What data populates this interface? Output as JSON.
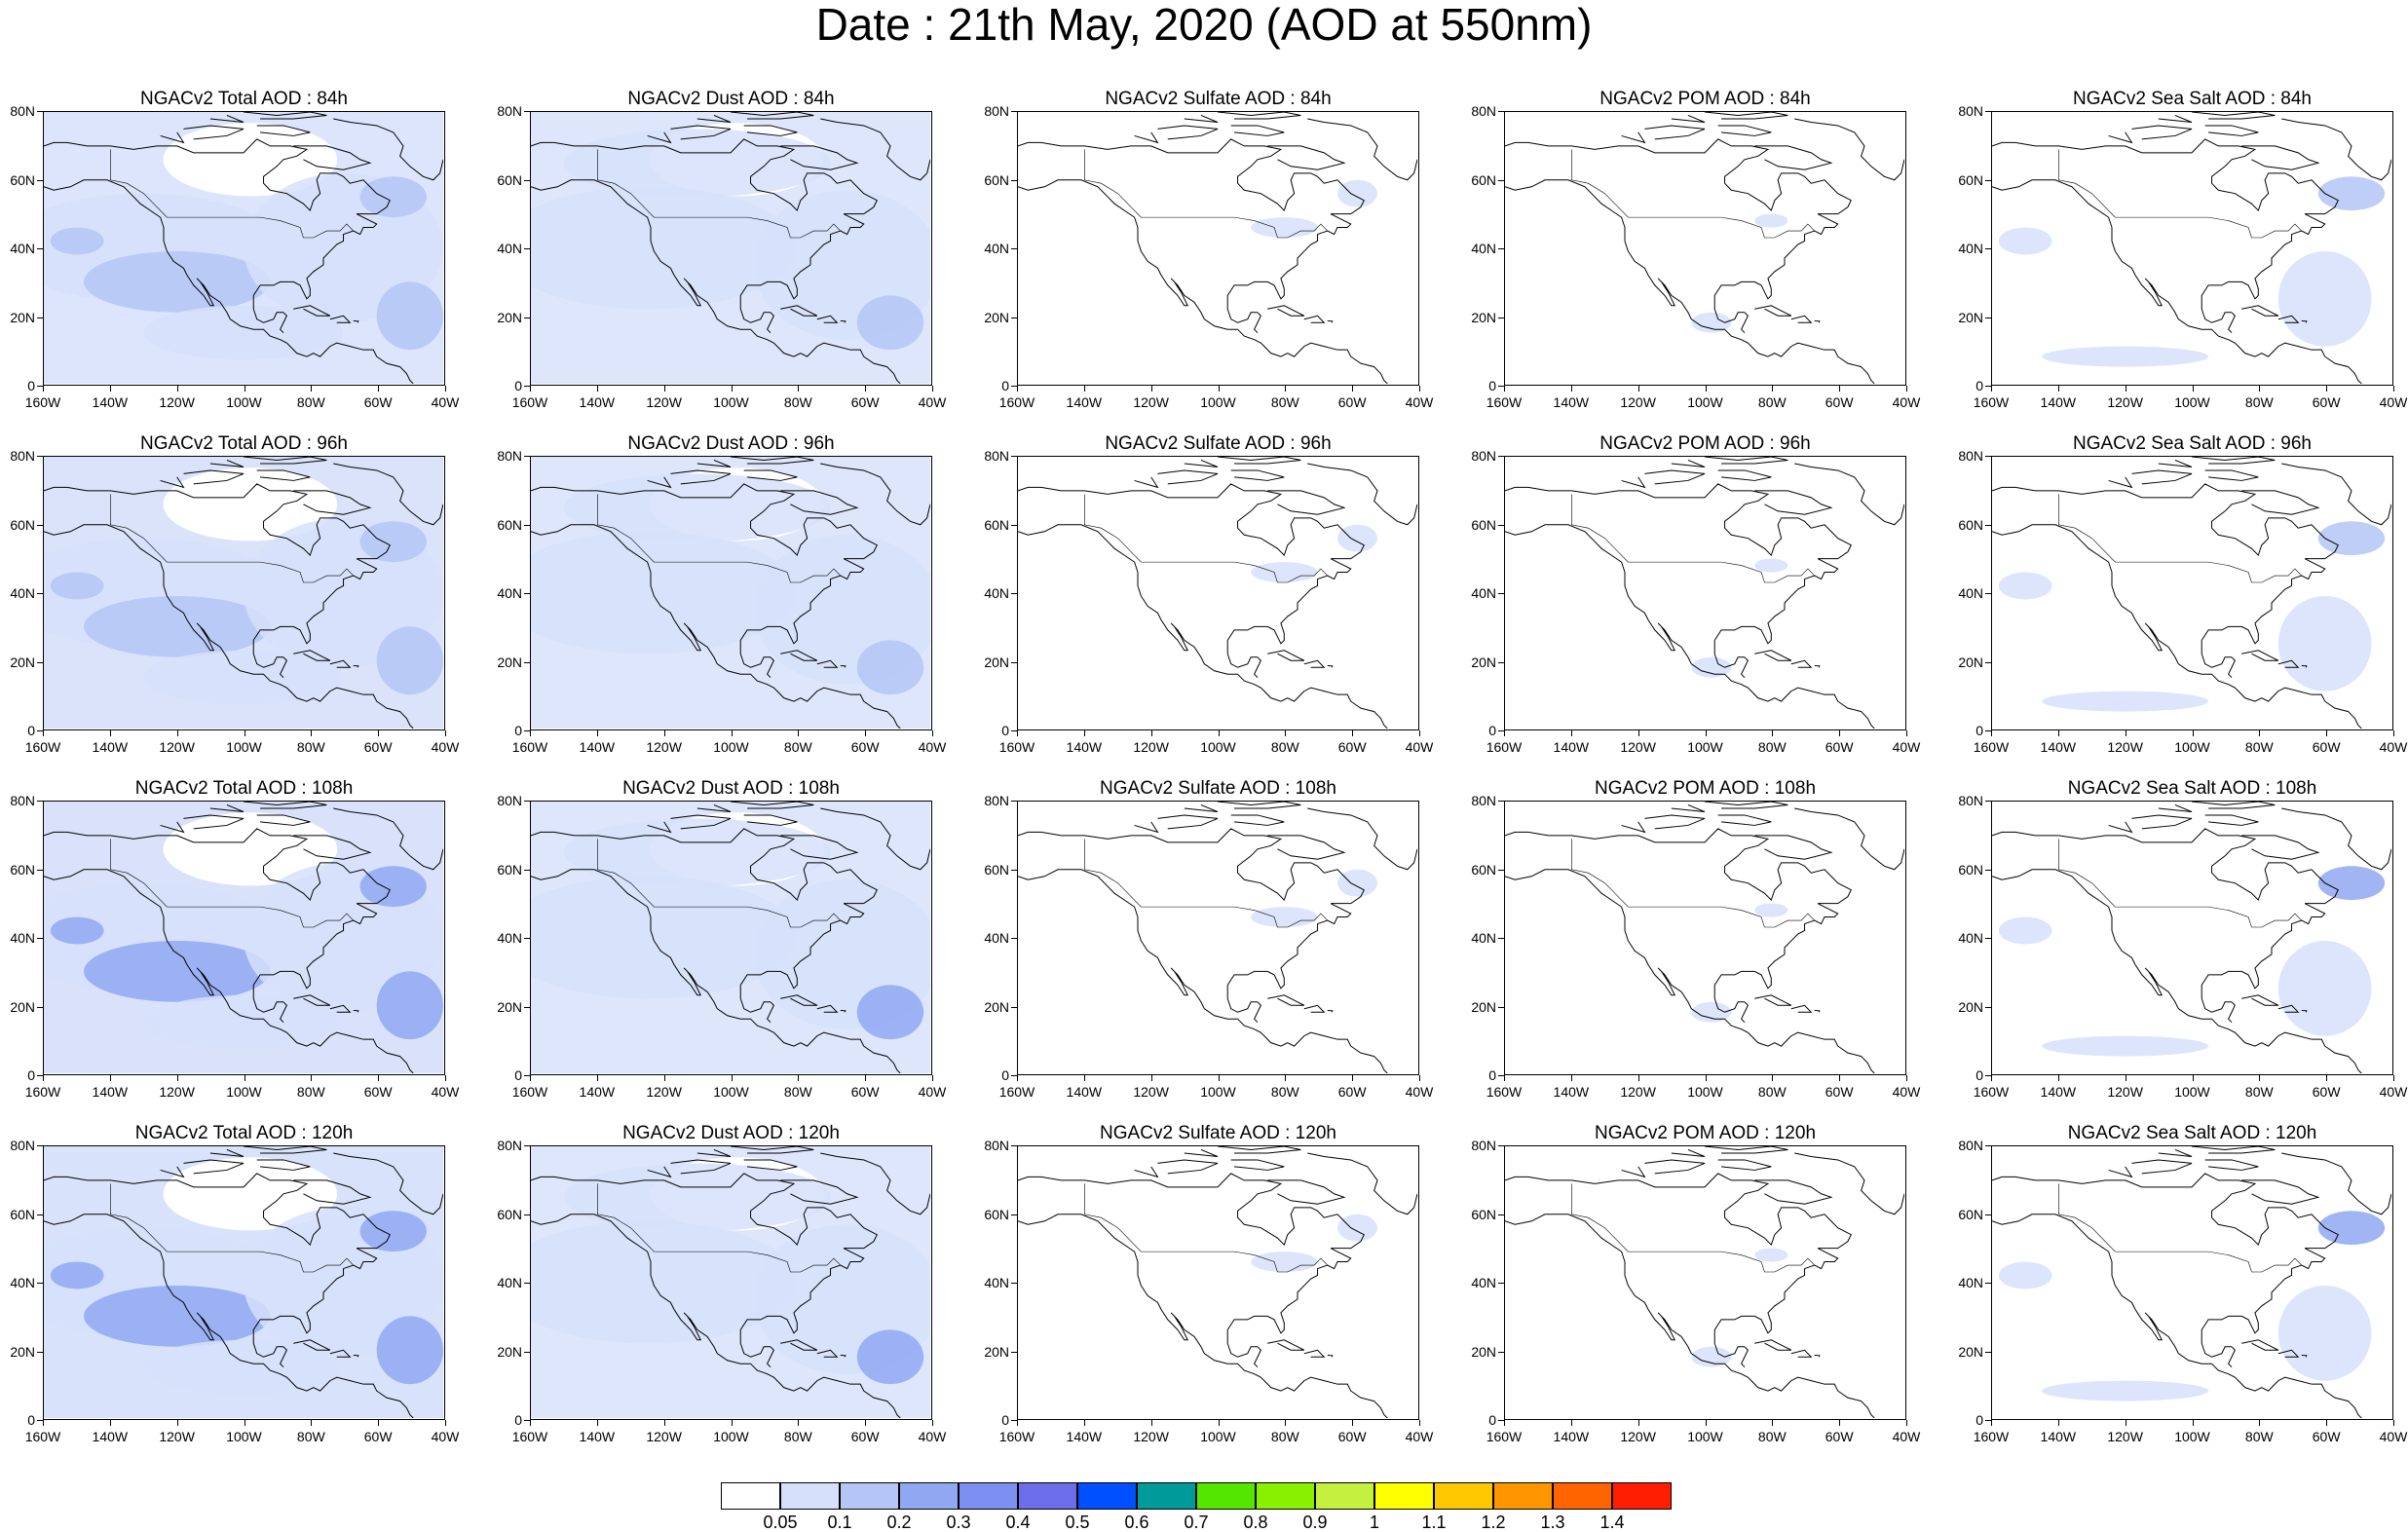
{
  "title": "Date : 21th May, 2020 (AOD at 550nm)",
  "rows": [
    {
      "hour": "84h",
      "panels": [
        {
          "title": "NGACv2 Total AOD : 84h",
          "species": "total",
          "coverage": 0.75
        },
        {
          "title": "NGACv2 Dust AOD : 84h",
          "species": "dust",
          "coverage": 0.7
        },
        {
          "title": "NGACv2 Sulfate AOD : 84h",
          "species": "sulfate",
          "coverage": 0.05
        },
        {
          "title": "NGACv2 POM AOD : 84h",
          "species": "pom",
          "coverage": 0.04
        },
        {
          "title": "NGACv2 Sea Salt AOD : 84h",
          "species": "seasalt",
          "coverage": 0.15
        }
      ]
    },
    {
      "hour": "96h",
      "panels": [
        {
          "title": "NGACv2 Total AOD : 96h",
          "species": "total",
          "coverage": 0.8
        },
        {
          "title": "NGACv2 Dust AOD : 96h",
          "species": "dust",
          "coverage": 0.7
        },
        {
          "title": "NGACv2 Sulfate AOD : 96h",
          "species": "sulfate",
          "coverage": 0.06
        },
        {
          "title": "NGACv2 POM AOD : 96h",
          "species": "pom",
          "coverage": 0.05
        },
        {
          "title": "NGACv2 Sea Salt AOD : 96h",
          "species": "seasalt",
          "coverage": 0.2
        }
      ]
    },
    {
      "hour": "108h",
      "panels": [
        {
          "title": "NGACv2 Total AOD : 108h",
          "species": "total",
          "coverage": 0.82
        },
        {
          "title": "NGACv2 Dust AOD : 108h",
          "species": "dust",
          "coverage": 0.72
        },
        {
          "title": "NGACv2 Sulfate AOD : 108h",
          "species": "sulfate",
          "coverage": 0.07
        },
        {
          "title": "NGACv2 POM AOD : 108h",
          "species": "pom",
          "coverage": 0.04
        },
        {
          "title": "NGACv2 Sea Salt  AOD : 108h",
          "species": "seasalt",
          "coverage": 0.22
        }
      ]
    },
    {
      "hour": "120h",
      "panels": [
        {
          "title": "NGACv2 Total AOD : 120h",
          "species": "total",
          "coverage": 0.85
        },
        {
          "title": "NGACv2 Dust AOD : 120h",
          "species": "dust",
          "coverage": 0.72
        },
        {
          "title": "NGACv2 Sulfate AOD : 120h",
          "species": "sulfate",
          "coverage": 0.08
        },
        {
          "title": "NGACv2 POM AOD : 120h",
          "species": "pom",
          "coverage": 0.05
        },
        {
          "title": "NGACv2 Sea Salt  AOD : 120h",
          "species": "seasalt",
          "coverage": 0.25
        }
      ]
    }
  ],
  "lat_labels": [
    "80N",
    "60N",
    "40N",
    "20N",
    "0"
  ],
  "lon_labels": [
    "160W",
    "140W",
    "120W",
    "100W",
    "80W",
    "60W",
    "40W"
  ],
  "colorbar": {
    "labels": [
      "0.05",
      "0.1",
      "0.2",
      "0.3",
      "0.4",
      "0.5",
      "0.6",
      "0.7",
      "0.8",
      "0.9",
      "1",
      "1.1",
      "1.2",
      "1.3",
      "1.4"
    ],
    "colors": [
      "#ffffff",
      "#d6e0fa",
      "#b4c6f6",
      "#90a8f2",
      "#7d8ff0",
      "#6b6ee8",
      "#0050ff",
      "#009a9a",
      "#55e600",
      "#88f000",
      "#c4f040",
      "#ffff00",
      "#ffc800",
      "#ff9600",
      "#ff6400",
      "#ff1e00"
    ]
  }
}
